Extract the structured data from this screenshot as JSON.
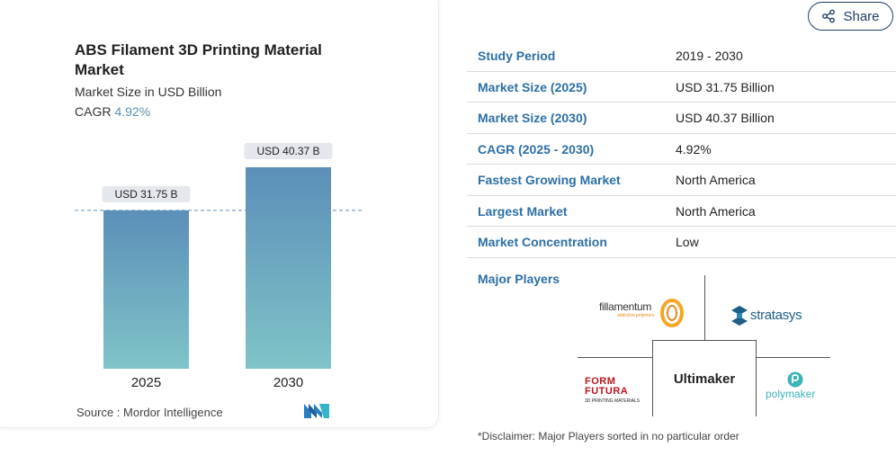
{
  "chart_data": {
    "type": "bar",
    "title": "ABS Filament 3D Printing Material Market",
    "subtitle": "Market Size in USD Billion",
    "cagr_label": "CAGR",
    "cagr_value": "4.92%",
    "categories": [
      "2025",
      "2030"
    ],
    "values": [
      31.75,
      40.37
    ],
    "data_labels": [
      "USD 31.75 B",
      "USD 40.37 B"
    ],
    "ylim": [
      0,
      40.37
    ],
    "reference_line": 31.75,
    "bar_color_top": "#5b8fb8",
    "bar_color_bottom": "#80c4c8"
  },
  "source": {
    "text": "Source :  Mordor Intelligence",
    "logo_icon": "mordor-intelligence-logo-icon"
  },
  "share": {
    "label": "Share",
    "icon": "share-icon"
  },
  "facts": [
    {
      "label": "Study Period",
      "value": "2019 - 2030"
    },
    {
      "label": "Market Size (2025)",
      "value": "USD 31.75 Billion"
    },
    {
      "label": "Market Size (2030)",
      "value": "USD 40.37 Billion"
    },
    {
      "label": "CAGR (2025 - 2030)",
      "value": "4.92%"
    },
    {
      "label": "Fastest Growing Market",
      "value": "North America"
    },
    {
      "label": "Largest Market",
      "value": "North America"
    },
    {
      "label": "Market Concentration",
      "value": "Low"
    }
  ],
  "players": {
    "label": "Major Players",
    "fillamentum": "fillamentum",
    "fillamentum_tagline": "addictive polymers",
    "stratasys": "stratasys",
    "formfutura": "FORM FUTURA",
    "formfutura_tagline": "3D PRINTING MATERIALS",
    "ultimaker": "Ultimaker",
    "polymaker": "polymaker"
  },
  "disclaimer": "*Disclaimer: Major Players sorted in no particular order"
}
